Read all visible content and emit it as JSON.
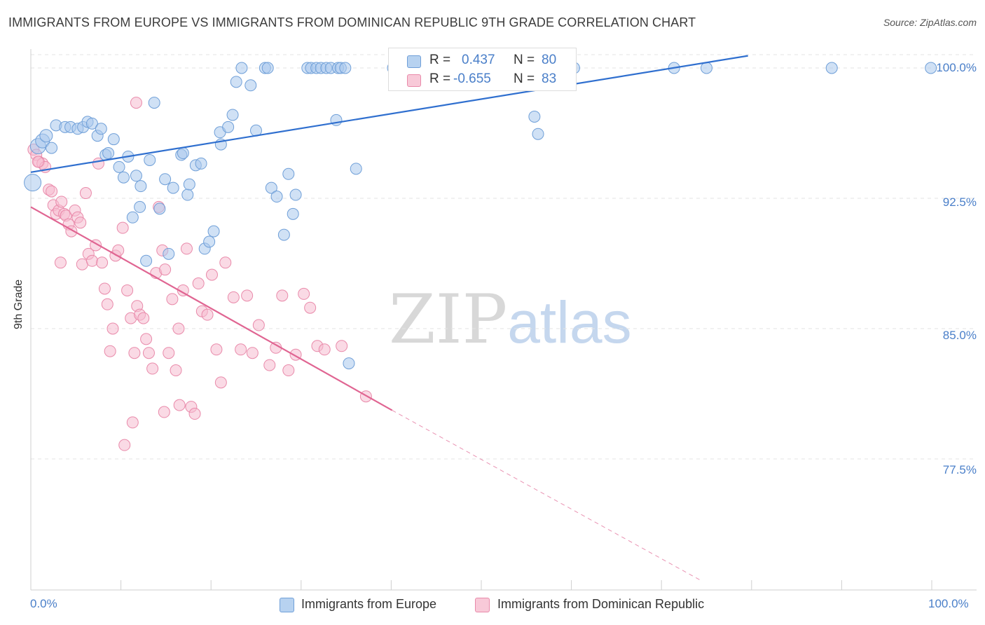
{
  "header": {
    "title": "IMMIGRANTS FROM EUROPE VS IMMIGRANTS FROM DOMINICAN REPUBLIC 9TH GRADE CORRELATION CHART",
    "source": "Source: ZipAtlas.com"
  },
  "watermark": {
    "zip": "ZIP",
    "atlas": "atlas"
  },
  "legend": {
    "rows": [
      {
        "r_label": "R =",
        "r_value": "0.437",
        "n_label": "N =",
        "n_value": "80",
        "color": "#9fc3ea"
      },
      {
        "r_label": "R =",
        "r_value": "-0.655",
        "n_label": "N =",
        "n_value": "83",
        "color": "#f3afc5"
      }
    ]
  },
  "bottom_legend": {
    "europe": "Immigrants from Europe",
    "dominican": "Immigrants from Dominican Republic"
  },
  "colors": {
    "europe_fill": "#a9c8ec",
    "europe_stroke": "#6f9fd8",
    "europe_line": "#2f6fcf",
    "dominican_fill": "#f6bcd0",
    "dominican_stroke": "#e98aaa",
    "dominican_line": "#e06592",
    "axis_label": "#4a7fc9",
    "grid": "#e3e3e3"
  },
  "chart_data": {
    "type": "scatter",
    "title": "IMMIGRANTS FROM EUROPE VS IMMIGRANTS FROM DOMINICAN REPUBLIC 9TH GRADE CORRELATION CHART",
    "ylabel": "9th Grade",
    "xlabel": "",
    "xlim": [
      0,
      100
    ],
    "ylim": [
      71.0,
      100.7
    ],
    "x_tick_labels": [
      "0.0%",
      "100.0%"
    ],
    "y_ticks": [
      77.5,
      85.0,
      92.5,
      100.0
    ],
    "y_tick_labels": [
      "77.5%",
      "85.0%",
      "92.5%",
      "100.0%"
    ],
    "grid": true,
    "legend_position": "top-center",
    "series": [
      {
        "name": "Immigrants from Europe",
        "R": 0.437,
        "N": 80,
        "trend": {
          "x": [
            0,
            79.6
          ],
          "y": [
            94.0,
            100.7
          ]
        },
        "points": [
          [
            0.2,
            93.4
          ],
          [
            0.8,
            95.5
          ],
          [
            1.3,
            95.8
          ],
          [
            1.7,
            96.1
          ],
          [
            2.3,
            95.4
          ],
          [
            2.8,
            96.7
          ],
          [
            3.8,
            96.6
          ],
          [
            4.4,
            96.6
          ],
          [
            5.2,
            96.5
          ],
          [
            5.8,
            96.6
          ],
          [
            6.3,
            96.9
          ],
          [
            6.8,
            96.8
          ],
          [
            7.4,
            96.1
          ],
          [
            7.8,
            96.5
          ],
          [
            8.3,
            95.0
          ],
          [
            8.6,
            95.1
          ],
          [
            9.2,
            95.9
          ],
          [
            9.8,
            94.3
          ],
          [
            10.3,
            93.7
          ],
          [
            10.8,
            94.9
          ],
          [
            11.3,
            91.4
          ],
          [
            11.7,
            93.8
          ],
          [
            12.2,
            93.2
          ],
          [
            12.8,
            88.9
          ],
          [
            13.2,
            94.7
          ],
          [
            13.7,
            98.0
          ],
          [
            14.3,
            91.9
          ],
          [
            14.9,
            93.6
          ],
          [
            15.3,
            89.3
          ],
          [
            15.8,
            93.1
          ],
          [
            16.7,
            95.0
          ],
          [
            16.9,
            95.1
          ],
          [
            17.4,
            92.7
          ],
          [
            17.6,
            93.3
          ],
          [
            18.3,
            94.4
          ],
          [
            18.9,
            94.5
          ],
          [
            19.3,
            89.6
          ],
          [
            19.8,
            90.0
          ],
          [
            20.3,
            90.6
          ],
          [
            21.0,
            96.3
          ],
          [
            21.1,
            95.6
          ],
          [
            21.9,
            96.6
          ],
          [
            22.4,
            97.3
          ],
          [
            22.8,
            99.2
          ],
          [
            23.4,
            100.0
          ],
          [
            24.4,
            99.0
          ],
          [
            25.0,
            96.4
          ],
          [
            26.0,
            100.0
          ],
          [
            26.3,
            100.0
          ],
          [
            26.7,
            93.1
          ],
          [
            27.3,
            92.6
          ],
          [
            28.1,
            90.4
          ],
          [
            28.6,
            93.9
          ],
          [
            29.1,
            91.6
          ],
          [
            29.4,
            92.7
          ],
          [
            30.7,
            100.0
          ],
          [
            31.1,
            100.0
          ],
          [
            31.7,
            100.0
          ],
          [
            32.2,
            100.0
          ],
          [
            32.8,
            100.0
          ],
          [
            33.3,
            100.0
          ],
          [
            34.1,
            100.0
          ],
          [
            34.4,
            100.0
          ],
          [
            34.9,
            100.0
          ],
          [
            35.3,
            83.0
          ],
          [
            33.9,
            97.0
          ],
          [
            36.1,
            94.2
          ],
          [
            40.2,
            100.0
          ],
          [
            43.4,
            100.0
          ],
          [
            45.1,
            100.0
          ],
          [
            47.2,
            100.0
          ],
          [
            49.6,
            100.0
          ],
          [
            55.9,
            97.2
          ],
          [
            56.3,
            96.2
          ],
          [
            60.3,
            100.0
          ],
          [
            71.4,
            100.0
          ],
          [
            75.0,
            100.0
          ],
          [
            88.9,
            100.0
          ],
          [
            99.9,
            100.0
          ],
          [
            12.1,
            92.0
          ]
        ]
      },
      {
        "name": "Immigrants from Dominican Republic",
        "R": -0.655,
        "N": 83,
        "trend": {
          "x": [
            0,
            40.1
          ],
          "y": [
            92.0,
            80.3
          ]
        },
        "trend_dashed": {
          "x": [
            40.1,
            74.4
          ],
          "y": [
            80.3,
            70.5
          ]
        },
        "points": [
          [
            0.3,
            95.3
          ],
          [
            0.6,
            95.0
          ],
          [
            0.9,
            94.6
          ],
          [
            1.3,
            94.5
          ],
          [
            1.6,
            94.3
          ],
          [
            2.0,
            93.0
          ],
          [
            2.3,
            92.9
          ],
          [
            2.5,
            92.1
          ],
          [
            2.8,
            91.6
          ],
          [
            3.1,
            91.8
          ],
          [
            3.4,
            92.3
          ],
          [
            3.7,
            91.6
          ],
          [
            3.9,
            91.5
          ],
          [
            4.2,
            91.0
          ],
          [
            4.5,
            90.6
          ],
          [
            4.9,
            91.8
          ],
          [
            5.2,
            91.4
          ],
          [
            5.5,
            91.1
          ],
          [
            5.7,
            88.7
          ],
          [
            6.1,
            92.8
          ],
          [
            6.4,
            89.3
          ],
          [
            6.8,
            88.9
          ],
          [
            7.2,
            89.8
          ],
          [
            7.5,
            94.5
          ],
          [
            7.9,
            88.8
          ],
          [
            8.2,
            87.3
          ],
          [
            8.5,
            86.4
          ],
          [
            8.8,
            83.7
          ],
          [
            9.1,
            85.0
          ],
          [
            9.4,
            89.2
          ],
          [
            9.7,
            89.5
          ],
          [
            10.2,
            90.8
          ],
          [
            10.7,
            87.2
          ],
          [
            11.1,
            85.6
          ],
          [
            11.5,
            83.6
          ],
          [
            11.8,
            86.3
          ],
          [
            12.1,
            85.8
          ],
          [
            12.5,
            85.6
          ],
          [
            12.8,
            84.4
          ],
          [
            13.1,
            83.6
          ],
          [
            13.5,
            82.7
          ],
          [
            13.9,
            88.2
          ],
          [
            14.2,
            92.0
          ],
          [
            14.6,
            89.5
          ],
          [
            14.9,
            88.4
          ],
          [
            15.3,
            83.6
          ],
          [
            15.7,
            86.7
          ],
          [
            16.1,
            82.6
          ],
          [
            16.4,
            85.0
          ],
          [
            16.9,
            87.2
          ],
          [
            17.3,
            89.6
          ],
          [
            17.8,
            80.5
          ],
          [
            18.2,
            80.1
          ],
          [
            18.6,
            87.6
          ],
          [
            19.0,
            86.0
          ],
          [
            19.6,
            85.8
          ],
          [
            20.1,
            88.1
          ],
          [
            20.6,
            83.8
          ],
          [
            21.1,
            81.9
          ],
          [
            21.6,
            88.8
          ],
          [
            22.5,
            86.8
          ],
          [
            23.3,
            83.8
          ],
          [
            24.0,
            86.9
          ],
          [
            24.6,
            83.6
          ],
          [
            25.3,
            85.2
          ],
          [
            26.5,
            82.9
          ],
          [
            27.2,
            83.9
          ],
          [
            27.9,
            86.9
          ],
          [
            28.6,
            82.6
          ],
          [
            29.4,
            83.5
          ],
          [
            30.3,
            87.0
          ],
          [
            31.0,
            86.2
          ],
          [
            31.8,
            84.0
          ],
          [
            32.6,
            83.8
          ],
          [
            34.5,
            84.0
          ],
          [
            37.2,
            81.1
          ],
          [
            11.7,
            98.0
          ],
          [
            11.3,
            79.6
          ],
          [
            14.8,
            80.2
          ],
          [
            16.5,
            80.6
          ],
          [
            10.4,
            78.3
          ],
          [
            3.3,
            88.8
          ],
          [
            0.8,
            94.6
          ]
        ]
      }
    ]
  }
}
